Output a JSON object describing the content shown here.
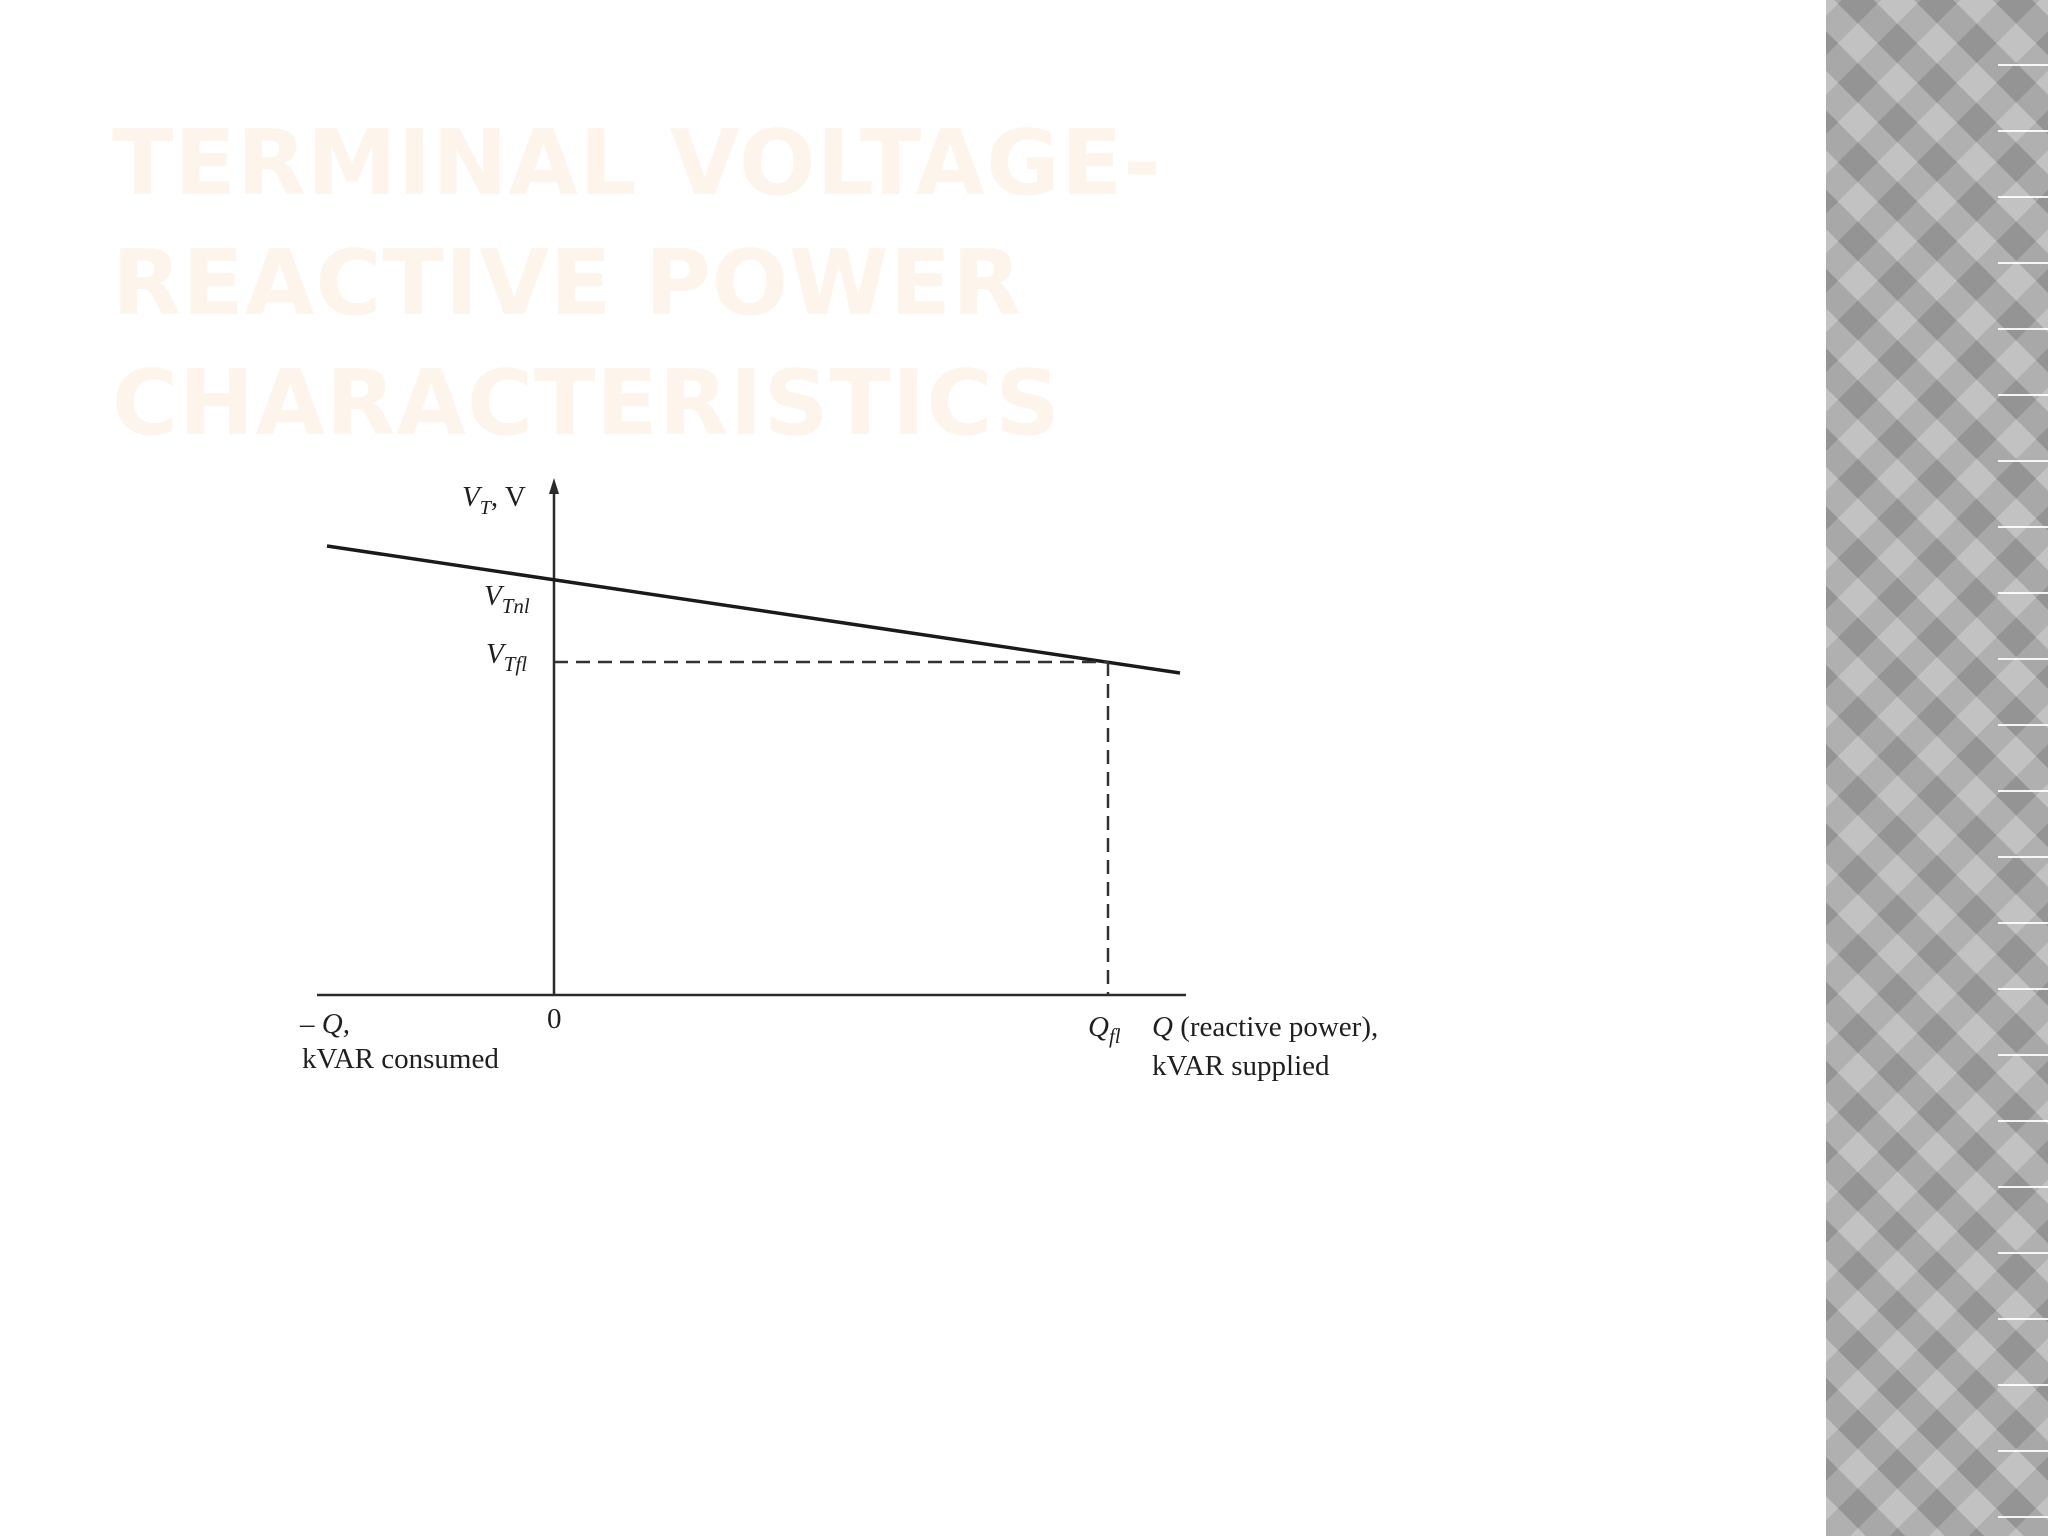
{
  "slide": {
    "title": "TERMINAL VOLTAGE- REACTIVE POWER CHARACTERISTICS"
  },
  "diagram": {
    "y_axis_label": "V",
    "y_axis_label_sub": "T",
    "y_axis_unit": ", V",
    "vnl_label": "V",
    "vnl_sub": "Tnl",
    "vfl_label": "V",
    "vfl_sub": "Tfl",
    "origin_label": "0",
    "neg_axis_label": "– Q,",
    "neg_axis_caption": "kVAR consumed",
    "qfl_label": "Q",
    "qfl_sub": "fl",
    "pos_axis_label_q": "Q",
    "pos_axis_label_rest": " (reactive power),",
    "pos_axis_caption": "kVAR supplied"
  },
  "colors": {
    "title": "#fdf4ec",
    "band": "#a9a9a9",
    "ink": "#1f1f1f"
  }
}
